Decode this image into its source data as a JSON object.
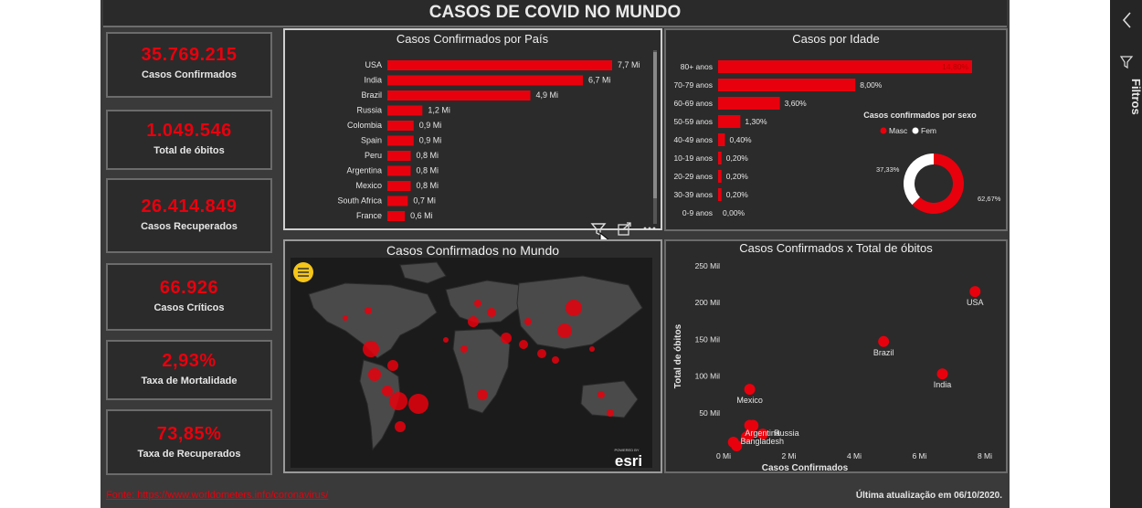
{
  "dashboard": {
    "title": "CASOS DE COVID NO MUNDO"
  },
  "kpis": [
    {
      "value": "35.769.215",
      "label": "Casos Confirmados"
    },
    {
      "value": "1.049.546",
      "label": "Total de óbitos"
    },
    {
      "value": "26.414.849",
      "label": "Casos Recuperados"
    },
    {
      "value": "66.926",
      "label": "Casos Críticos"
    },
    {
      "value": "2,93%",
      "label": "Taxa de Mortalidade"
    },
    {
      "value": "73,85%",
      "label": "Taxa de Recuperados"
    }
  ],
  "sidebar": {
    "label": "Filtros",
    "icons": [
      "chevron-left-icon",
      "filter-icon"
    ]
  },
  "footer": {
    "source": "Fonte: https://www.worldometers.info/coronavirus/",
    "updated": "Última atualização em 06/10/2020."
  },
  "visual_toolbar": {
    "icons": [
      "filter-icon",
      "focus-mode-icon",
      "more-options-icon"
    ]
  },
  "map": {
    "title": "Casos Confirmados no Mundo",
    "logo_small": "POWERED BY",
    "logo": "esri",
    "menu_icon": "hamburger-icon"
  },
  "colors": {
    "accent": "#e8000d",
    "panel": "#2b2b2b",
    "border": "#6b6b6b",
    "text": "#e6e6e6"
  },
  "chart_data": [
    {
      "id": "countries",
      "type": "bar",
      "title": "Casos Confirmados por País",
      "categories": [
        "USA",
        "India",
        "Brazil",
        "Russia",
        "Colombia",
        "Spain",
        "Peru",
        "Argentina",
        "Mexico",
        "South Africa",
        "France"
      ],
      "values": [
        7.7,
        6.7,
        4.9,
        1.2,
        0.9,
        0.9,
        0.8,
        0.8,
        0.8,
        0.7,
        0.6
      ],
      "labels": [
        "7,7 Mi",
        "6,7 Mi",
        "4,9 Mi",
        "1,2 Mi",
        "0,9 Mi",
        "0,9 Mi",
        "0,8 Mi",
        "0,8 Mi",
        "0,8 Mi",
        "0,7 Mi",
        "0,6 Mi"
      ],
      "orientation": "horizontal",
      "grid": false
    },
    {
      "id": "age",
      "type": "bar",
      "title": "Casos por Idade",
      "categories": [
        "80+ anos",
        "70-79 anos",
        "60-69 anos",
        "50-59 anos",
        "40-49 anos",
        "10-19 anos",
        "20-29 anos",
        "30-39 anos",
        "0-9 anos"
      ],
      "values": [
        14.8,
        8.0,
        3.6,
        1.3,
        0.4,
        0.2,
        0.2,
        0.2,
        0.0
      ],
      "labels": [
        "14,80%",
        "8,00%",
        "3,60%",
        "1,30%",
        "0,40%",
        "0,20%",
        "0,20%",
        "0,20%",
        "0,00%"
      ],
      "orientation": "horizontal",
      "grid": false
    },
    {
      "id": "sex",
      "type": "pie",
      "title": "Casos confirmados por sexo",
      "series": [
        {
          "name": "Masc",
          "value": 62.67,
          "label": "62,67%"
        },
        {
          "name": "Fem",
          "value": 37.33,
          "label": "37,33%"
        }
      ],
      "legend": "top-center"
    },
    {
      "id": "scatter",
      "type": "scatter",
      "title": "Casos Confirmados x Total de óbitos",
      "xlabel": "Casos Confirmados",
      "ylabel": "Total de óbitos",
      "xlim": [
        0,
        8
      ],
      "ylim": [
        0,
        250
      ],
      "xticks": [
        "0 Mi",
        "2 Mi",
        "4 Mi",
        "6 Mi",
        "8 Mi"
      ],
      "yticks": [
        "50 Mil",
        "100 Mil",
        "150 Mil",
        "200 Mil",
        "250 Mil"
      ],
      "points": [
        {
          "label": "USA",
          "x": 7.7,
          "y": 215
        },
        {
          "label": "Brazil",
          "x": 4.9,
          "y": 147
        },
        {
          "label": "India",
          "x": 6.7,
          "y": 103
        },
        {
          "label": "Mexico",
          "x": 0.8,
          "y": 82
        },
        {
          "label": "Argentina",
          "x": 0.8,
          "y": 21
        },
        {
          "label": "Russia",
          "x": 1.2,
          "y": 21
        },
        {
          "label": "Bangladesh",
          "x": 0.4,
          "y": 5
        },
        {
          "label": "",
          "x": 0.9,
          "y": 33
        },
        {
          "label": "",
          "x": 0.7,
          "y": 17
        },
        {
          "label": "",
          "x": 0.8,
          "y": 33
        },
        {
          "label": "",
          "x": 0.9,
          "y": 32
        },
        {
          "label": "",
          "x": 0.3,
          "y": 10
        }
      ],
      "grid": false
    }
  ]
}
